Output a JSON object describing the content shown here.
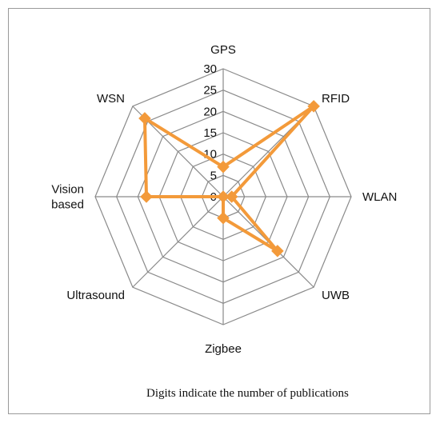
{
  "chart_data": {
    "type": "radar",
    "title": "",
    "categories": [
      "GPS",
      "RFID",
      "WLAN",
      "UWB",
      "Zigbee",
      "Ultrasound",
      "Vision based",
      "WSN"
    ],
    "series": [
      {
        "values": [
          7,
          30,
          2,
          18,
          5,
          0,
          18,
          26
        ]
      }
    ],
    "rlim": [
      0,
      30
    ],
    "ticks": [
      "0",
      "5",
      "10",
      "15",
      "20",
      "25",
      "30"
    ],
    "grid": true,
    "colors": {
      "series": "#f39a3a",
      "grid": "#8a8a8a"
    }
  },
  "footnote": "Digits indicate the number of publications"
}
